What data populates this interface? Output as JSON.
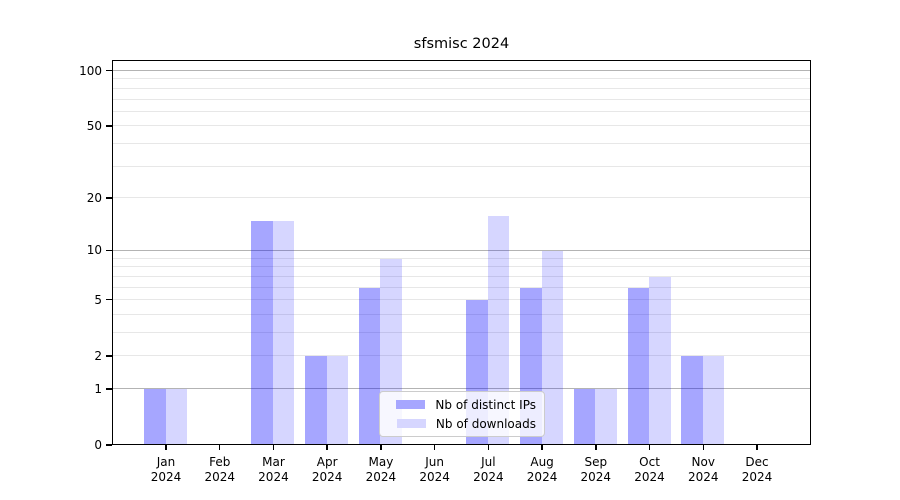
{
  "chart_data": {
    "type": "bar",
    "title": "sfsmisc 2024",
    "year_label": "2024",
    "categories": [
      "Jan",
      "Feb",
      "Mar",
      "Apr",
      "May",
      "Jun",
      "Jul",
      "Aug",
      "Sep",
      "Oct",
      "Nov",
      "Dec"
    ],
    "series": [
      {
        "name": "Nb of distinct IPs",
        "values": [
          1,
          0,
          15,
          2,
          6,
          0,
          5,
          6,
          1,
          6,
          2,
          0
        ],
        "bar_color": "rgba(0,0,255,0.35)",
        "swatch_color": "#a6a6ff"
      },
      {
        "name": "Nb of downloads",
        "values": [
          1,
          0,
          15,
          2,
          9,
          0,
          16,
          10,
          1,
          7,
          2,
          0
        ],
        "bar_color": "rgba(0,0,255,0.16)",
        "swatch_color": "#d6d6ff"
      }
    ],
    "xlabel": "",
    "ylabel": "",
    "scale": "log10(1+y)",
    "ylim": [
      0,
      114
    ],
    "yticks": [
      0,
      1,
      2,
      5,
      10,
      20,
      50,
      100
    ],
    "major_gridlines": [
      1,
      10,
      100
    ],
    "minor_gridlines": [
      2,
      3,
      4,
      5,
      6,
      7,
      8,
      9,
      20,
      30,
      40,
      50,
      60,
      70,
      80,
      90
    ],
    "grid": "on",
    "legend_position": "lower center"
  },
  "colors": {
    "major_grid": "#b3b3b3",
    "minor_grid": "#e7e7e7",
    "spine": "#000000",
    "background": "#ffffff"
  }
}
